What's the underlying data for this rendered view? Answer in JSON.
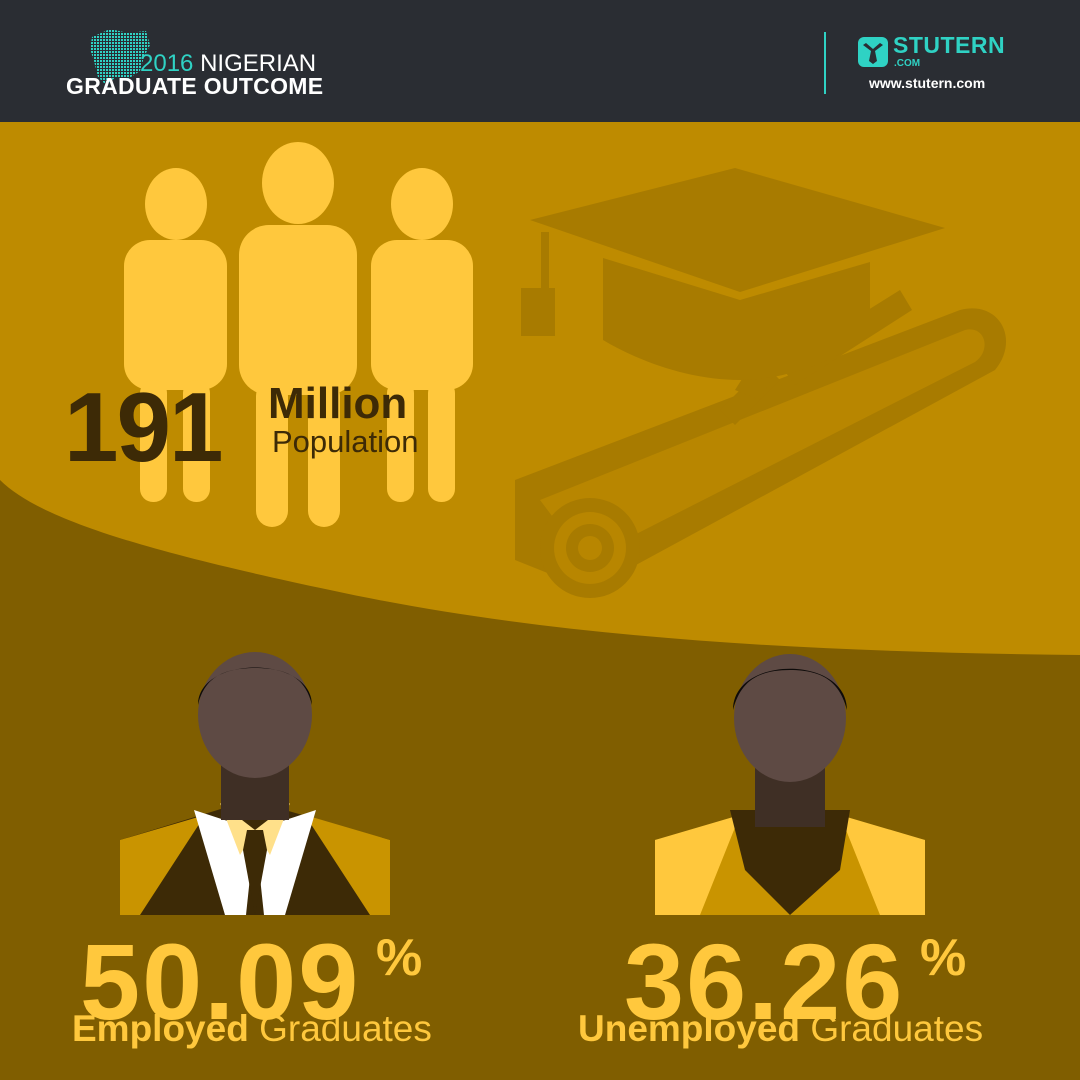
{
  "header": {
    "title_year": "2016",
    "title_rest": "NIGERIAN",
    "title_line2": "GRADUATE OUTCOME",
    "brand_name": "STUTERN",
    "brand_suffix": ".COM",
    "brand_url": "www.stutern.com"
  },
  "population": {
    "value": "191",
    "unit": "Million",
    "label": "Population"
  },
  "employed": {
    "value": "50.09",
    "percent_sign": "%",
    "label_bold": "Employed",
    "label_rest": "Graduates"
  },
  "unemployed": {
    "value": "36.26",
    "percent_sign": "%",
    "label_bold": "Unemployed",
    "label_rest": "Graduates"
  },
  "colors": {
    "header_bg": "#2a2d33",
    "accent_teal": "#2fd2c4",
    "upper_gold": "#be8b00",
    "lower_brown": "#805e00",
    "figure_yellow": "#ffc83d",
    "text_dark": "#3d2a06"
  },
  "icons": [
    "nigeria-map-icon",
    "stutern-logo-icon",
    "people-group-icon",
    "graduation-cap-icon",
    "diploma-scroll-icon",
    "employed-graduate-icon",
    "unemployed-graduate-icon"
  ]
}
